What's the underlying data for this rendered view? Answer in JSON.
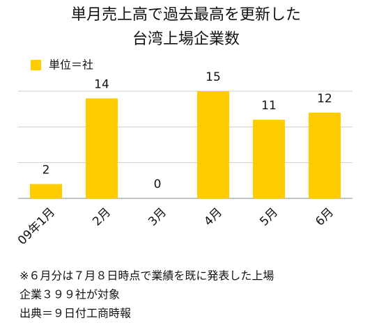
{
  "chart_data": {
    "type": "bar",
    "title": [
      "単月売上高で過去最高を更新した",
      "台湾上場企業数"
    ],
    "legend": "単位＝社",
    "categories": [
      "09年1月",
      "2月",
      "3月",
      "4月",
      "5月",
      "6月"
    ],
    "values": [
      2,
      14,
      0,
      15,
      11,
      12
    ],
    "color": "#ffcc00",
    "ylim": [
      0,
      15
    ],
    "yticks": [
      0,
      5,
      10,
      15
    ],
    "grid": true,
    "notes": [
      "※６月分は７月８日時点で業績を既に発表した上場",
      "企業３９９社が対象",
      "出典＝９日付工商時報"
    ]
  }
}
